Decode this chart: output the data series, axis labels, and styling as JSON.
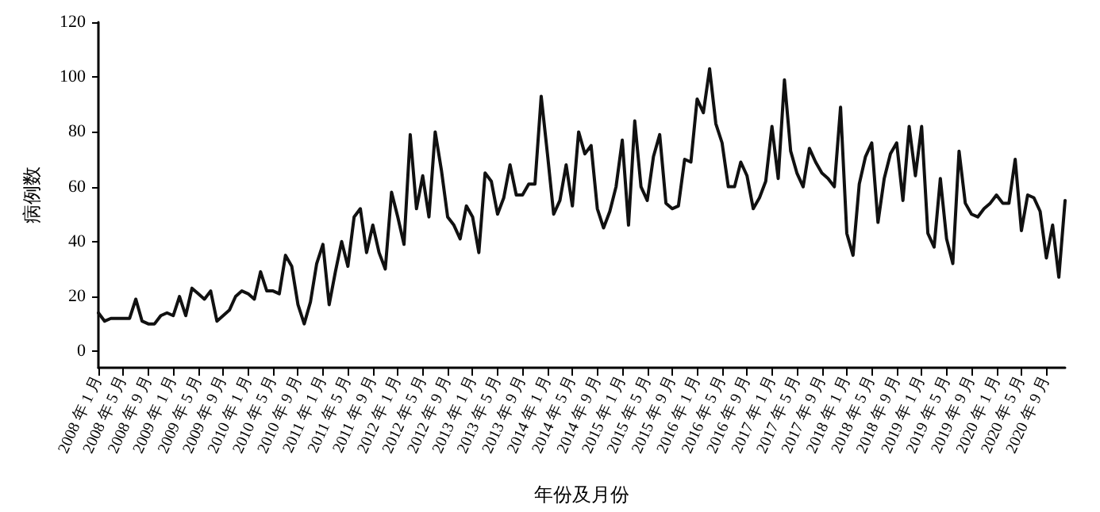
{
  "chart_data": {
    "type": "line",
    "xlabel": "年份及月份",
    "ylabel": "病例数",
    "categories": [
      "2008 年 1 月",
      null,
      null,
      null,
      "2008 年 5 月",
      null,
      null,
      null,
      "2008 年 9 月",
      null,
      null,
      null,
      "2009 年 1 月",
      null,
      null,
      null,
      "2009 年 5 月",
      null,
      null,
      null,
      "2009 年 9 月",
      null,
      null,
      null,
      "2010 年 1 月",
      null,
      null,
      null,
      "2010 年 5 月",
      null,
      null,
      null,
      "2010 年 9 月",
      null,
      null,
      null,
      "2011 年 1 月",
      null,
      null,
      null,
      "2011 年 5 月",
      null,
      null,
      null,
      "2011 年 9 月",
      null,
      null,
      null,
      "2012 年 1 月",
      null,
      null,
      null,
      "2012 年 5 月",
      null,
      null,
      null,
      "2012 年 9 月",
      null,
      null,
      null,
      "2013 年 1 月",
      null,
      null,
      null,
      "2013 年 5 月",
      null,
      null,
      null,
      "2013 年 9 月",
      null,
      null,
      null,
      "2014 年 1 月",
      null,
      null,
      null,
      "2014 年 5 月",
      null,
      null,
      null,
      "2014 年 9 月",
      null,
      null,
      null,
      "2015 年 1 月",
      null,
      null,
      null,
      "2015 年 5 月",
      null,
      null,
      null,
      "2015 年 9 月",
      null,
      null,
      null,
      "2016 年 1 月",
      null,
      null,
      null,
      "2016 年 5 月",
      null,
      null,
      null,
      "2016 年 9 月",
      null,
      null,
      null,
      "2017 年 1 月",
      null,
      null,
      null,
      "2017 年 5 月",
      null,
      null,
      null,
      "2017 年 9 月",
      null,
      null,
      null,
      "2018 年 1 月",
      null,
      null,
      null,
      "2018 年 5 月",
      null,
      null,
      null,
      "2018 年 9 月",
      null,
      null,
      null,
      "2019 年 1 月",
      null,
      null,
      null,
      "2019 年 5 月",
      null,
      null,
      null,
      "2019 年 9 月",
      null,
      null,
      null,
      "2020 年 1 月",
      null,
      null,
      null,
      "2020 年 5 月",
      null,
      null,
      null,
      "2020 年 9 月",
      null,
      null,
      null
    ],
    "series": [
      {
        "color": "#111111",
        "values": [
          14,
          11,
          12,
          12,
          12,
          12,
          19,
          11,
          10,
          10,
          13,
          14,
          13,
          20,
          13,
          23,
          21,
          19,
          22,
          11,
          13,
          15,
          20,
          22,
          21,
          19,
          29,
          22,
          22,
          21,
          35,
          31,
          17,
          10,
          18,
          32,
          39,
          17,
          29,
          40,
          31,
          49,
          52,
          36,
          46,
          36,
          30,
          58,
          49,
          39,
          79,
          52,
          64,
          49,
          80,
          66,
          49,
          46,
          41,
          53,
          49,
          36,
          65,
          62,
          50,
          56,
          68,
          57,
          57,
          61,
          61,
          93,
          72,
          50,
          55,
          68,
          53,
          80,
          72,
          75,
          52,
          45,
          51,
          60,
          77,
          46,
          84,
          60,
          55,
          71,
          79,
          54,
          52,
          53,
          70,
          69,
          92,
          87,
          103,
          83,
          76,
          60,
          60,
          69,
          64,
          52,
          56,
          62,
          82,
          63,
          99,
          73,
          65,
          60,
          74,
          69,
          65,
          63,
          60,
          89,
          43,
          35,
          61,
          71,
          76,
          47,
          63,
          72,
          76,
          55,
          82,
          64,
          82,
          43,
          38,
          63,
          41,
          32,
          73,
          54,
          50,
          49,
          52,
          54,
          57,
          54,
          54,
          70,
          44,
          57,
          56,
          51,
          34,
          46,
          27,
          55
        ]
      }
    ],
    "ylim": [
      -6,
      120
    ],
    "yticks": [
      0,
      20,
      40,
      60,
      80,
      100,
      120
    ],
    "grid": false,
    "marker": "none",
    "line_style": "solid"
  }
}
